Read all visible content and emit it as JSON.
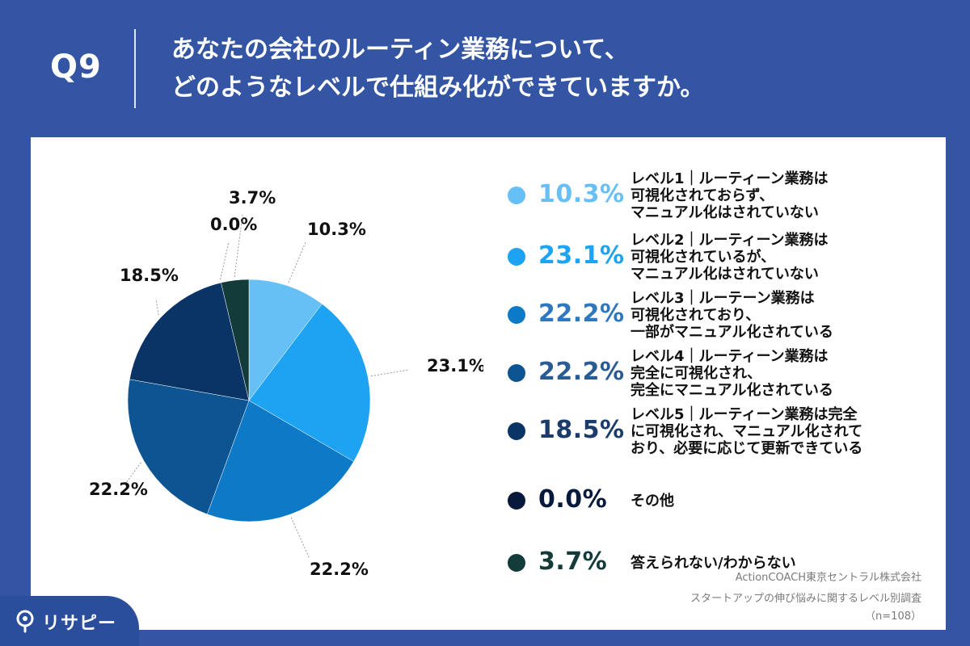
{
  "header": {
    "question_label": "Q9",
    "title_line1": "あなたの会社のルーティン業務について、",
    "title_line2": "どのようなレベルで仕組み化ができていますか。"
  },
  "chart_data": {
    "type": "pie",
    "title": "",
    "slices": [
      {
        "label": "レベル1｜ルーティーン業務は\n可視化されておらず、\nマニュアル化はされていない",
        "value": 10.3,
        "display": "10.3%",
        "color": "#66c0f6"
      },
      {
        "label": "レベル2｜ルーティーン業務は\n可視化されているが、\nマニュアル化はされていない",
        "value": 23.1,
        "display": "23.1%",
        "color": "#1ea2f2"
      },
      {
        "label": "レベル3｜ルーテーン業務は\n可視化されており、\n一部がマニュアル化されている",
        "value": 22.2,
        "display": "22.2%",
        "color": "#0e7ac7"
      },
      {
        "label": "レベル4｜ルーティーン業務は\n完全に可視化され、\n完全にマニュアル化されている",
        "value": 22.2,
        "display": "22.2%",
        "color": "#0c5592"
      },
      {
        "label": "レベル5｜ルーティーン業務は完全\nに可視化され、マニュアル化されて\nおり、必要に応じて更新できている",
        "value": 18.5,
        "display": "18.5%",
        "color": "#0b3466"
      },
      {
        "label": "その他",
        "value": 0.0,
        "display": "0.0%",
        "color": "#081a3b"
      },
      {
        "label": "答えられない/わからない",
        "value": 3.7,
        "display": "3.7%",
        "color": "#133b3a"
      }
    ],
    "legend_pct_colors": [
      "#66c0f6",
      "#1ea2f2",
      "#2f77bf",
      "#2a5b93",
      "#1b3b6b",
      "#081a3b",
      "#133b3a"
    ]
  },
  "source": {
    "line1": "ActionCOACH東京セントラル株式会社",
    "line2": "スタートアップの伸び悩みに関するレベル別調査",
    "line3": "（n=108）"
  },
  "brand": {
    "name": "リサピー"
  }
}
